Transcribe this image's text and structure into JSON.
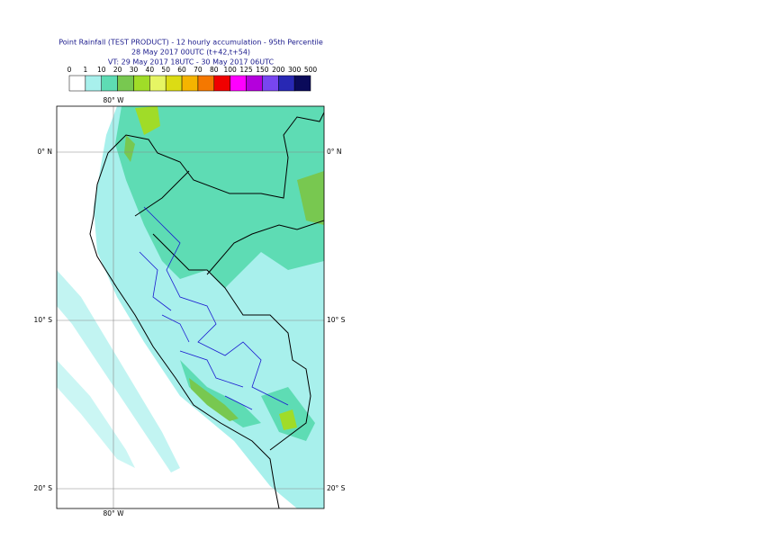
{
  "header": {
    "lines": [
      "Point Rainfall (TEST PRODUCT) - 12 hourly accumulation - 95th Percentile",
      "28 May 2017 00UTC (t+42,t+54)",
      "VT: 29 May 2017 18UTC - 30 May 2017 06UTC"
    ]
  },
  "colorbar": {
    "levels": [
      0,
      1,
      10,
      20,
      30,
      40,
      50,
      60,
      70,
      80,
      100,
      125,
      150,
      200,
      300,
      500
    ],
    "colors": [
      "#ffffff",
      "#a8f0ec",
      "#5edcb4",
      "#78c850",
      "#a0dc28",
      "#e6f564",
      "#dcdc14",
      "#f5b400",
      "#f57800",
      "#f00000",
      "#ff00ff",
      "#b400dc",
      "#7846f0",
      "#2828b4",
      "#0a0a5a"
    ]
  },
  "map": {
    "lon_label": "80° W",
    "lat_labels": [
      "0° N",
      "10° S",
      "20° S"
    ]
  }
}
